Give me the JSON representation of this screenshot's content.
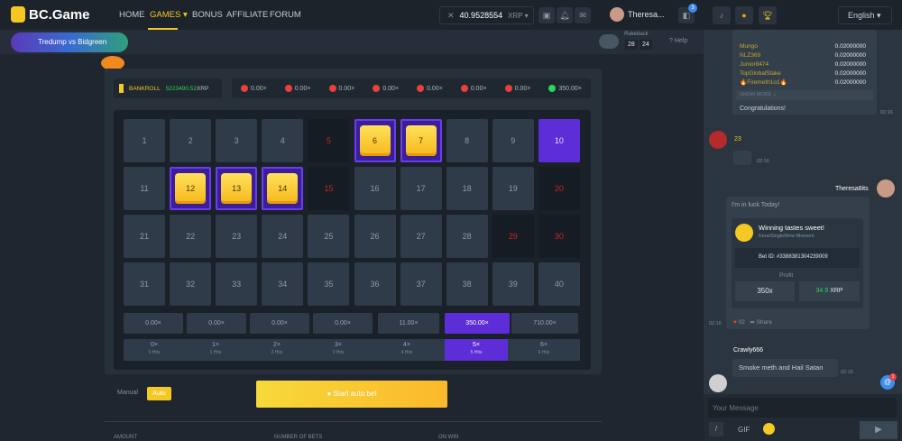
{
  "header": {
    "logo": "BC.Game",
    "nav": [
      {
        "label": "HOME"
      },
      {
        "label": "GAMES ▾"
      },
      {
        "label": "BONUS"
      },
      {
        "label": "AFFILIATE"
      },
      {
        "label": "FORUM"
      }
    ],
    "balance": "40.9528554",
    "currency": "XRP ▾",
    "username": "Theresa...",
    "chat_badge": "3",
    "language": "English"
  },
  "subbar": {
    "banner": "Tredump vs Bidgreen",
    "rakeback_label": "Rakeback",
    "rake_h": "28",
    "rake_m": "24",
    "help": "Help"
  },
  "game": {
    "bankroll_label": "BANKROLL",
    "bankroll_value": "5223490.52",
    "bankroll_currency": "XRP",
    "history": [
      {
        "v": "0.00×",
        "c": "#e9403d"
      },
      {
        "v": "0.00×",
        "c": "#e9403d"
      },
      {
        "v": "0.00×",
        "c": "#e9403d"
      },
      {
        "v": "0.00×",
        "c": "#e9403d"
      },
      {
        "v": "0.00×",
        "c": "#e9403d"
      },
      {
        "v": "0.00×",
        "c": "#e9403d"
      },
      {
        "v": "0.00×",
        "c": "#e9403d"
      },
      {
        "v": "350.00×",
        "c": "#2fd45a"
      }
    ],
    "picked": [
      6,
      7,
      12,
      13,
      14
    ],
    "misses": [
      5,
      15,
      20,
      29,
      30
    ],
    "hit_gem": [
      10
    ],
    "multipliers": [
      "0.00×",
      "0.00×",
      "0.00×",
      "0.00×",
      "11.00×",
      "350.00×",
      "710.00×"
    ],
    "active_multiplier": 5,
    "hits": [
      {
        "x": "0×",
        "h": "0 Hits"
      },
      {
        "x": "1×",
        "h": "1 Hits"
      },
      {
        "x": "2×",
        "h": "2 Hits"
      },
      {
        "x": "3×",
        "h": "3 Hits"
      },
      {
        "x": "4×",
        "h": "4 Hits"
      },
      {
        "x": "5×",
        "h": "5 Hits"
      },
      {
        "x": "6×",
        "h": "6 Hits"
      }
    ],
    "mode_manual": "Manual",
    "mode_auto": "Auto",
    "start": "Start auto bet",
    "labels": [
      "AMOUNT",
      "NUMBER OF BETS",
      "ON WIN"
    ]
  },
  "chat": {
    "winners": [
      {
        "n": "Mungo",
        "v": "0.02000000"
      },
      {
        "n": "NLZ369",
        "v": "0.02000000"
      },
      {
        "n": "Junior8474",
        "v": "0.02000000"
      },
      {
        "n": "TopGlobalStake",
        "v": "0.02000000"
      },
      {
        "n": "🔥Firemeth1o1🔥",
        "v": "0.02000000"
      }
    ],
    "show_more": "SHOW MORE",
    "congrats": "Congratulations!",
    "t1": "02:16",
    "badge23": "23",
    "t2": "02:16",
    "user2": "Theresa8its",
    "msg2": "I'm in luck Today!",
    "card_title": "Winning tastes sweet!",
    "card_sub": "KenoSingleWow Moment",
    "bet_id": "Bet ID: #3388381304239009",
    "profit_label": "Profit",
    "payout": "350x",
    "profit": "34.9",
    "profit_cur": "XRP",
    "likes": "02",
    "share": "Share",
    "t3": "02:16",
    "user3": "Crawly666",
    "msg3": "Smoke meth and Hail Satan",
    "t4": "02:16",
    "mention_badge": "1",
    "placeholder": "Your Message",
    "gif": "GIF"
  }
}
